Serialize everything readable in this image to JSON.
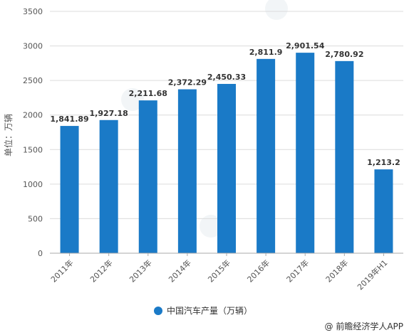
{
  "chart_data": {
    "type": "bar",
    "categories": [
      "2011年",
      "2012年",
      "2013年",
      "2014年",
      "2015年",
      "2016年",
      "2017年",
      "2018年",
      "2019年H1"
    ],
    "series": [
      {
        "name": "中国汽车产量（万辆）",
        "values": [
          1841.89,
          1927.18,
          2211.68,
          2372.29,
          2450.33,
          2811.9,
          2901.54,
          2780.92,
          1213.2
        ],
        "data_labels": [
          "1,841.89",
          "1,927.18",
          "2,211.68",
          "2,372.29",
          "2,450.33",
          "2,811.9",
          "2,901.54",
          "2,780.92",
          "1,213.2"
        ],
        "color": "#1a7ac7"
      }
    ],
    "ylabel": "单位：万辆",
    "ylim": [
      0,
      3500
    ],
    "yticks": [
      0,
      500,
      1000,
      1500,
      2000,
      2500,
      3000,
      3500
    ],
    "grid": true,
    "legend_position": "bottom-center"
  },
  "source": "@ 前瞻经济学人APP"
}
